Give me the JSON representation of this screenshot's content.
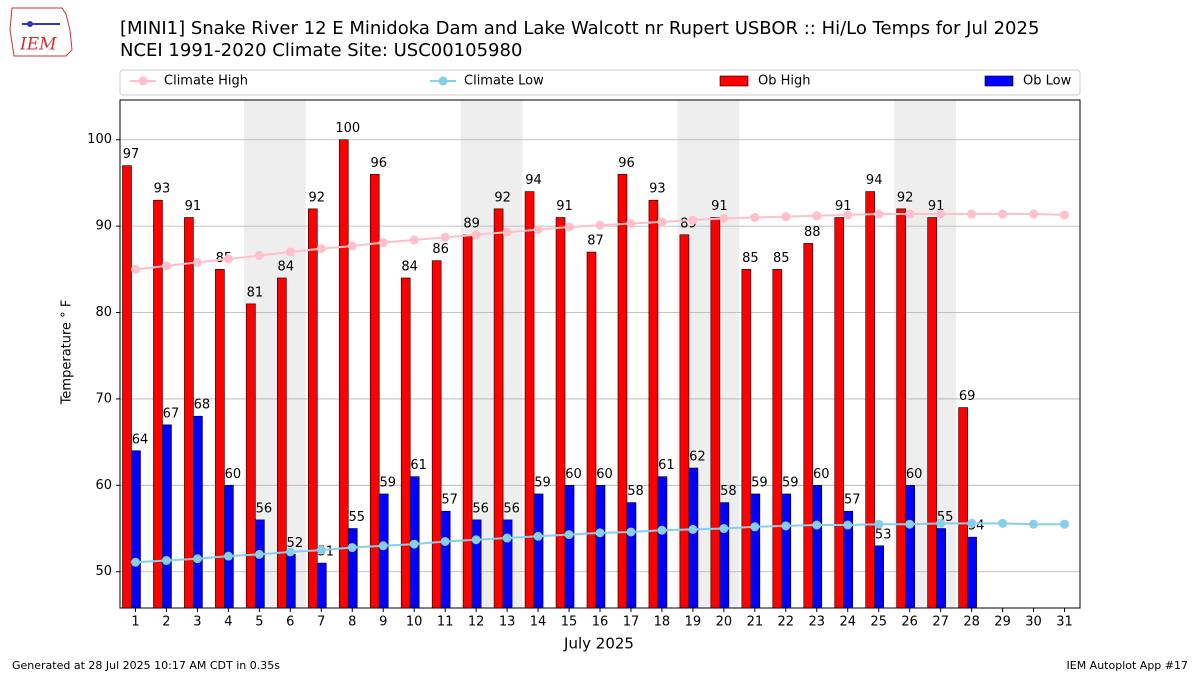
{
  "chart_data": {
    "type": "bar",
    "logo_text": "IEM",
    "title": "[MINI1] Snake River 12 E Minidoka Dam and Lake Walcott nr Rupert  USBOR :: Hi/Lo Temps for Jul 2025",
    "subtitle": "NCEI 1991-2020 Climate Site: USC00105980",
    "ylabel": "Temperature $^\\circ$F",
    "ylabel_text": "Temperature ° F",
    "xlabel": "July 2025",
    "footer_left": "Generated at 28 Jul 2025 10:17 AM CDT in 0.35s",
    "footer_right": "IEM Autoplot App #17",
    "categories": [
      "1",
      "2",
      "3",
      "4",
      "5",
      "6",
      "7",
      "8",
      "9",
      "10",
      "11",
      "12",
      "13",
      "14",
      "15",
      "16",
      "17",
      "18",
      "19",
      "20",
      "21",
      "22",
      "23",
      "24",
      "25",
      "26",
      "27",
      "28",
      "29",
      "30",
      "31"
    ],
    "highlight": [
      [
        5,
        6
      ],
      [
        12,
        13
      ],
      [
        19,
        20
      ],
      [
        26,
        27
      ]
    ],
    "ylim": [
      45.8,
      104.6
    ],
    "yticks": [
      50,
      60,
      70,
      80,
      90,
      100
    ],
    "grid": true,
    "legend": "top",
    "series": [
      {
        "name": "Climate High",
        "kind": "line",
        "color": "#ffc0cb",
        "values": [
          85.0,
          85.4,
          85.8,
          86.2,
          86.6,
          87.0,
          87.4,
          87.7,
          88.1,
          88.4,
          88.7,
          89.0,
          89.3,
          89.6,
          89.9,
          90.1,
          90.3,
          90.5,
          90.7,
          90.9,
          91.0,
          91.1,
          91.2,
          91.3,
          91.4,
          91.4,
          91.4,
          91.4,
          91.4,
          91.4,
          91.3
        ]
      },
      {
        "name": "Climate Low",
        "kind": "line",
        "color": "#87ceeb",
        "values": [
          51.1,
          51.3,
          51.5,
          51.8,
          52.0,
          52.3,
          52.5,
          52.8,
          53.0,
          53.2,
          53.5,
          53.7,
          53.9,
          54.1,
          54.3,
          54.5,
          54.6,
          54.8,
          54.9,
          55.0,
          55.2,
          55.3,
          55.4,
          55.4,
          55.5,
          55.5,
          55.6,
          55.6,
          55.6,
          55.5,
          55.5
        ]
      },
      {
        "name": "Ob High",
        "kind": "bar",
        "color": "#ff0000",
        "values": [
          97,
          93,
          91,
          85,
          81,
          84,
          92,
          100,
          96,
          84,
          86,
          89,
          92,
          94,
          91,
          87,
          96,
          93,
          89,
          91,
          85,
          85,
          88,
          91,
          94,
          92,
          91,
          69,
          null,
          null,
          null
        ]
      },
      {
        "name": "Ob Low",
        "kind": "bar",
        "color": "#0000ff",
        "values": [
          64,
          67,
          68,
          60,
          56,
          52,
          51,
          55,
          59,
          61,
          57,
          56,
          56,
          59,
          60,
          60,
          58,
          61,
          62,
          58,
          59,
          59,
          60,
          57,
          53,
          60,
          55,
          54,
          null,
          null,
          null
        ]
      }
    ]
  }
}
